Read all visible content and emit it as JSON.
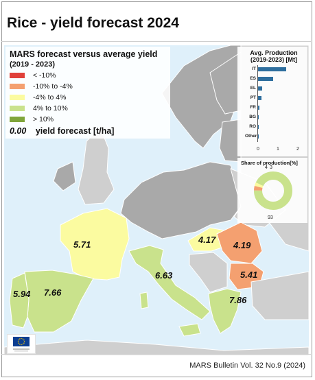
{
  "title": "Rice - yield forecast 2024",
  "legend": {
    "title": "MARS forecast versus average yield",
    "subtitle": "(2019 - 2023)",
    "classes": [
      {
        "label": "< -10%",
        "color": "#e0403a"
      },
      {
        "label": "-10% to -4%",
        "color": "#f4a070"
      },
      {
        "label": "-4% to 4%",
        "color": "#fbfba0"
      },
      {
        "label": "4% to 10%",
        "color": "#c9e28c"
      },
      {
        "label": "> 10%",
        "color": "#7fa53a"
      }
    ],
    "forecast_example": "0.00",
    "forecast_label": "yield forecast [t/ha]"
  },
  "map": {
    "sea_color": "#dff0fa",
    "non_eu_color": "#cfcfcf",
    "no_data_color": "#a9a9a9",
    "regions": [
      {
        "name": "France",
        "value": "5.71",
        "class": "-4% to 4%"
      },
      {
        "name": "Spain",
        "value": "7.66",
        "class": "4% to 10%"
      },
      {
        "name": "Portugal",
        "value": "5.94",
        "class": "4% to 10%"
      },
      {
        "name": "Italy",
        "value": "6.63",
        "class": "4% to 10%"
      },
      {
        "name": "Hungary",
        "value": "4.17",
        "class": "-4% to 4%"
      },
      {
        "name": "Romania",
        "value": "4.19",
        "class": "-10% to -4%"
      },
      {
        "name": "Bulgaria",
        "value": "5.41",
        "class": "-10% to -4%"
      },
      {
        "name": "Greece",
        "value": "7.86",
        "class": "4% to 10%"
      }
    ]
  },
  "production_chart": {
    "title": "Avg. Production (2019-2023) [Mt]",
    "categories": [
      "IT",
      "ES",
      "EL",
      "PT",
      "FR",
      "BG",
      "RO",
      "Other"
    ],
    "values": [
      1.4,
      0.75,
      0.2,
      0.16,
      0.07,
      0.05,
      0.03,
      0.01
    ],
    "ticks": [
      "0",
      "1",
      "2"
    ],
    "bar_color": "#2e6e9e"
  },
  "share_chart": {
    "title": "Share of production[%]",
    "slices": [
      {
        "label": "93",
        "value": 93,
        "color": "#c9e28c"
      },
      {
        "label": "4",
        "value": 4,
        "color": "#f4a070"
      },
      {
        "label": "3",
        "value": 3,
        "color": "#fbfba0"
      }
    ]
  },
  "footer": "MARS Bulletin Vol. 32 No.9 (2024)",
  "logo": {
    "text": "European Commission",
    "flag_color": "#0b3d91",
    "star_color": "#ffcc00"
  }
}
